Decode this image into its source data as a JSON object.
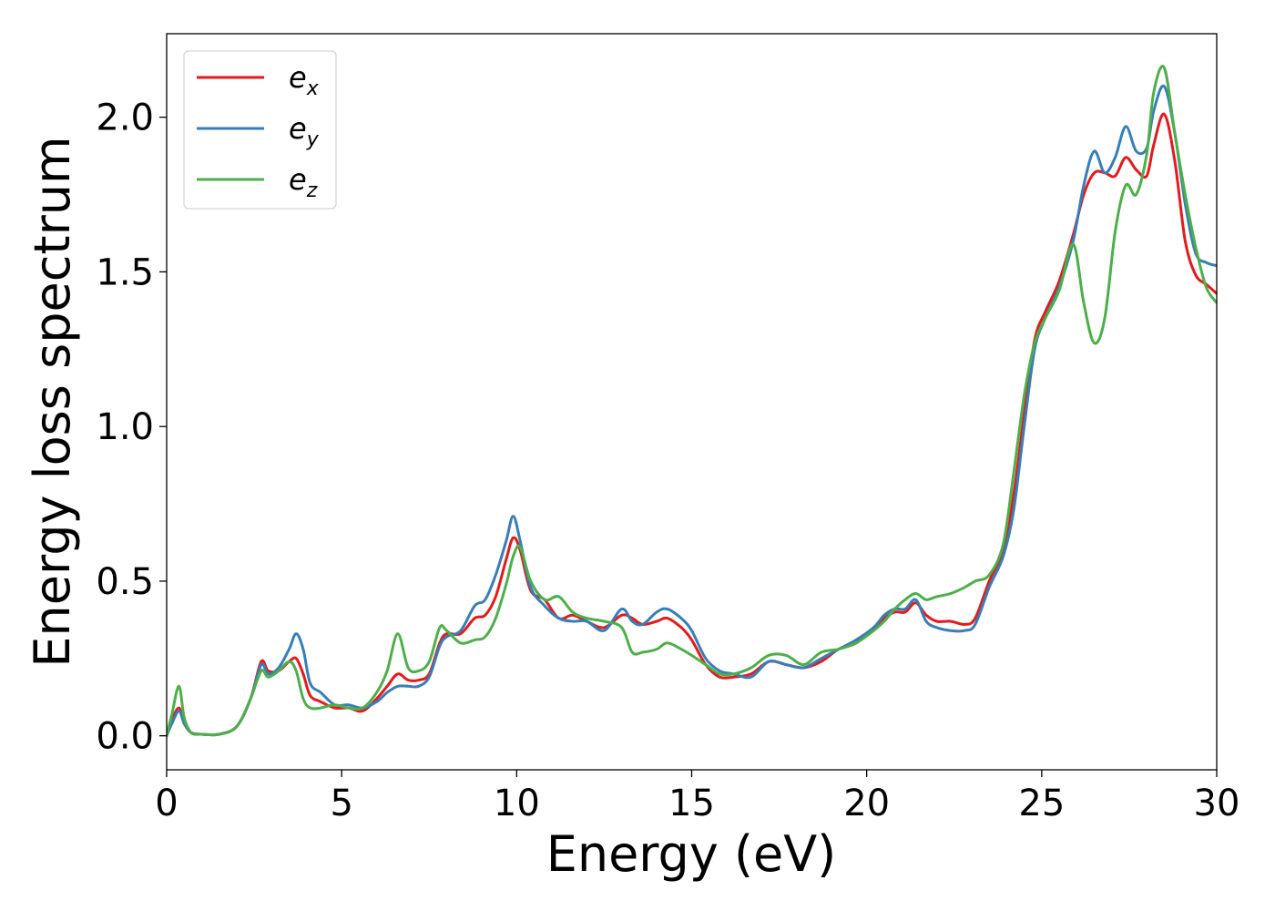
{
  "chart_data": {
    "type": "line",
    "title": "",
    "xlabel": "Energy (eV)",
    "ylabel": "Energy loss spectrum",
    "xlim": [
      0,
      30
    ],
    "ylim": [
      -0.11,
      2.27
    ],
    "xticks": [
      0,
      5,
      10,
      15,
      20,
      25,
      30
    ],
    "xtick_labels": [
      "0",
      "5",
      "10",
      "15",
      "20",
      "25",
      "30"
    ],
    "yticks": [
      0.0,
      0.5,
      1.0,
      1.5,
      2.0
    ],
    "ytick_labels": [
      "0.0",
      "0.5",
      "1.0",
      "1.5",
      "2.0"
    ],
    "grid": false,
    "legend_position": "top-left",
    "series": [
      {
        "name": "e",
        "subscript": "x",
        "color": "#e41a1c",
        "x": [
          0,
          0.15,
          0.35,
          0.5,
          0.7,
          1.0,
          1.5,
          2.0,
          2.4,
          2.7,
          2.9,
          3.2,
          3.5,
          3.7,
          3.9,
          4.1,
          4.4,
          4.8,
          5.2,
          5.6,
          6.0,
          6.3,
          6.6,
          6.9,
          7.2,
          7.5,
          7.8,
          8.0,
          8.4,
          8.8,
          9.1,
          9.4,
          9.7,
          9.9,
          10.1,
          10.4,
          10.8,
          11.2,
          11.6,
          12.0,
          12.5,
          13.0,
          13.3,
          13.6,
          14.0,
          14.3,
          14.7,
          15.0,
          15.4,
          15.8,
          16.2,
          16.7,
          17.2,
          17.7,
          18.2,
          18.7,
          19.2,
          19.7,
          20.2,
          20.5,
          20.8,
          21.1,
          21.4,
          21.7,
          22.0,
          22.4,
          22.8,
          23.1,
          23.5,
          23.9,
          24.2,
          24.5,
          24.8,
          25.1,
          25.5,
          25.9,
          26.2,
          26.5,
          26.8,
          27.1,
          27.4,
          27.7,
          28.0,
          28.2,
          28.5,
          28.8,
          29.1,
          29.4,
          29.7,
          30.0
        ],
        "y": [
          0.0,
          0.05,
          0.09,
          0.04,
          0.01,
          0.005,
          0.005,
          0.03,
          0.12,
          0.24,
          0.21,
          0.21,
          0.24,
          0.25,
          0.2,
          0.13,
          0.11,
          0.09,
          0.09,
          0.08,
          0.12,
          0.16,
          0.2,
          0.18,
          0.18,
          0.2,
          0.3,
          0.33,
          0.33,
          0.38,
          0.39,
          0.45,
          0.57,
          0.64,
          0.6,
          0.47,
          0.44,
          0.38,
          0.39,
          0.37,
          0.35,
          0.39,
          0.38,
          0.36,
          0.37,
          0.38,
          0.35,
          0.31,
          0.23,
          0.19,
          0.19,
          0.2,
          0.24,
          0.23,
          0.22,
          0.24,
          0.28,
          0.3,
          0.35,
          0.38,
          0.4,
          0.4,
          0.43,
          0.39,
          0.37,
          0.37,
          0.36,
          0.38,
          0.5,
          0.6,
          0.78,
          1.04,
          1.28,
          1.37,
          1.47,
          1.62,
          1.75,
          1.82,
          1.82,
          1.81,
          1.87,
          1.83,
          1.81,
          1.91,
          2.01,
          1.86,
          1.6,
          1.49,
          1.46,
          1.43
        ]
      },
      {
        "name": "e",
        "subscript": "y",
        "color": "#377eb8",
        "x": [
          0,
          0.15,
          0.35,
          0.5,
          0.7,
          1.0,
          1.5,
          2.0,
          2.4,
          2.7,
          2.9,
          3.2,
          3.5,
          3.7,
          3.9,
          4.1,
          4.4,
          4.8,
          5.2,
          5.6,
          6.0,
          6.3,
          6.6,
          6.9,
          7.2,
          7.5,
          7.8,
          8.0,
          8.4,
          8.8,
          9.1,
          9.4,
          9.7,
          9.9,
          10.1,
          10.4,
          10.8,
          11.2,
          11.6,
          12.0,
          12.5,
          13.0,
          13.3,
          13.6,
          14.0,
          14.3,
          14.7,
          15.0,
          15.4,
          15.8,
          16.2,
          16.7,
          17.2,
          17.7,
          18.2,
          18.7,
          19.2,
          19.7,
          20.2,
          20.5,
          20.8,
          21.1,
          21.4,
          21.7,
          22.0,
          22.4,
          22.8,
          23.1,
          23.5,
          23.9,
          24.2,
          24.5,
          24.8,
          25.1,
          25.5,
          25.9,
          26.2,
          26.5,
          26.8,
          27.1,
          27.4,
          27.7,
          28.0,
          28.2,
          28.5,
          28.8,
          29.1,
          29.4,
          29.7,
          30.0
        ],
        "y": [
          0.0,
          0.04,
          0.08,
          0.04,
          0.01,
          0.005,
          0.005,
          0.03,
          0.12,
          0.23,
          0.2,
          0.22,
          0.28,
          0.33,
          0.28,
          0.17,
          0.14,
          0.1,
          0.1,
          0.09,
          0.11,
          0.14,
          0.16,
          0.16,
          0.16,
          0.19,
          0.29,
          0.32,
          0.34,
          0.42,
          0.44,
          0.52,
          0.63,
          0.71,
          0.63,
          0.48,
          0.42,
          0.38,
          0.37,
          0.37,
          0.34,
          0.41,
          0.37,
          0.36,
          0.4,
          0.41,
          0.38,
          0.34,
          0.25,
          0.21,
          0.2,
          0.19,
          0.24,
          0.23,
          0.22,
          0.25,
          0.28,
          0.31,
          0.35,
          0.39,
          0.41,
          0.41,
          0.44,
          0.37,
          0.35,
          0.34,
          0.34,
          0.36,
          0.48,
          0.58,
          0.73,
          1.0,
          1.25,
          1.35,
          1.45,
          1.6,
          1.78,
          1.89,
          1.82,
          1.87,
          1.97,
          1.89,
          1.9,
          2.02,
          2.1,
          1.95,
          1.72,
          1.56,
          1.53,
          1.52
        ]
      },
      {
        "name": "e",
        "subscript": "z",
        "color": "#4daf4a",
        "x": [
          0,
          0.15,
          0.35,
          0.5,
          0.7,
          1.0,
          1.5,
          2.0,
          2.4,
          2.7,
          2.9,
          3.2,
          3.5,
          3.7,
          3.9,
          4.1,
          4.4,
          4.8,
          5.2,
          5.6,
          6.0,
          6.3,
          6.6,
          6.9,
          7.2,
          7.5,
          7.8,
          8.0,
          8.4,
          8.8,
          9.1,
          9.4,
          9.7,
          9.9,
          10.1,
          10.4,
          10.8,
          11.2,
          11.6,
          12.0,
          12.5,
          13.0,
          13.3,
          13.6,
          14.0,
          14.3,
          14.7,
          15.0,
          15.4,
          15.8,
          16.2,
          16.7,
          17.2,
          17.7,
          18.2,
          18.7,
          19.2,
          19.7,
          20.2,
          20.5,
          20.8,
          21.1,
          21.4,
          21.7,
          22.0,
          22.4,
          22.8,
          23.1,
          23.5,
          23.9,
          24.2,
          24.5,
          24.8,
          25.1,
          25.5,
          25.9,
          26.2,
          26.5,
          26.8,
          27.1,
          27.4,
          27.7,
          28.0,
          28.2,
          28.5,
          28.8,
          29.1,
          29.4,
          29.7,
          30.0
        ],
        "y": [
          0.0,
          0.07,
          0.16,
          0.06,
          0.01,
          0.005,
          0.005,
          0.03,
          0.12,
          0.21,
          0.19,
          0.21,
          0.24,
          0.21,
          0.12,
          0.09,
          0.09,
          0.1,
          0.09,
          0.09,
          0.14,
          0.21,
          0.33,
          0.22,
          0.21,
          0.24,
          0.35,
          0.34,
          0.3,
          0.31,
          0.32,
          0.38,
          0.49,
          0.58,
          0.61,
          0.5,
          0.44,
          0.45,
          0.4,
          0.38,
          0.37,
          0.35,
          0.27,
          0.27,
          0.28,
          0.3,
          0.28,
          0.26,
          0.23,
          0.2,
          0.2,
          0.22,
          0.26,
          0.26,
          0.23,
          0.27,
          0.28,
          0.3,
          0.34,
          0.37,
          0.41,
          0.44,
          0.46,
          0.44,
          0.45,
          0.46,
          0.48,
          0.5,
          0.52,
          0.62,
          0.85,
          1.1,
          1.27,
          1.35,
          1.44,
          1.59,
          1.4,
          1.27,
          1.35,
          1.63,
          1.78,
          1.75,
          1.88,
          2.08,
          2.16,
          1.95,
          1.75,
          1.58,
          1.45,
          1.4
        ]
      }
    ]
  }
}
